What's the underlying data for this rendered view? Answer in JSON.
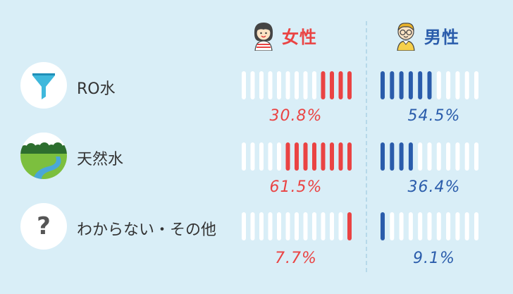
{
  "columns": {
    "female": {
      "label": "女性",
      "color": "#ea4343",
      "icon": "girl-avatar-icon"
    },
    "male": {
      "label": "男性",
      "color": "#2a5cab",
      "icon": "boy-avatar-icon"
    }
  },
  "colors": {
    "background": "#d9eef7",
    "empty_segment": "#ffffff"
  },
  "chart_data": {
    "type": "bar",
    "categories": [
      "RO水",
      "天然水",
      "わからない・その他"
    ],
    "series": [
      {
        "name": "女性",
        "values": [
          30.8,
          61.5,
          7.7
        ]
      },
      {
        "name": "男性",
        "values": [
          54.5,
          36.4,
          9.1
        ]
      }
    ],
    "segments_per_bar": {
      "女性": 13,
      "男性": 11
    },
    "unit": "%",
    "ylim": [
      0,
      100
    ]
  },
  "rows": [
    {
      "label": "RO水",
      "icon": "funnel-icon",
      "female_pct": "30.8%",
      "male_pct": "54.5%"
    },
    {
      "label": "天然水",
      "icon": "river-landscape-icon",
      "female_pct": "61.5%",
      "male_pct": "36.4%"
    },
    {
      "label": "わからない・その他",
      "icon": "question-mark-icon",
      "icon_text": "?",
      "female_pct": "7.7%",
      "male_pct": "9.1%"
    }
  ]
}
